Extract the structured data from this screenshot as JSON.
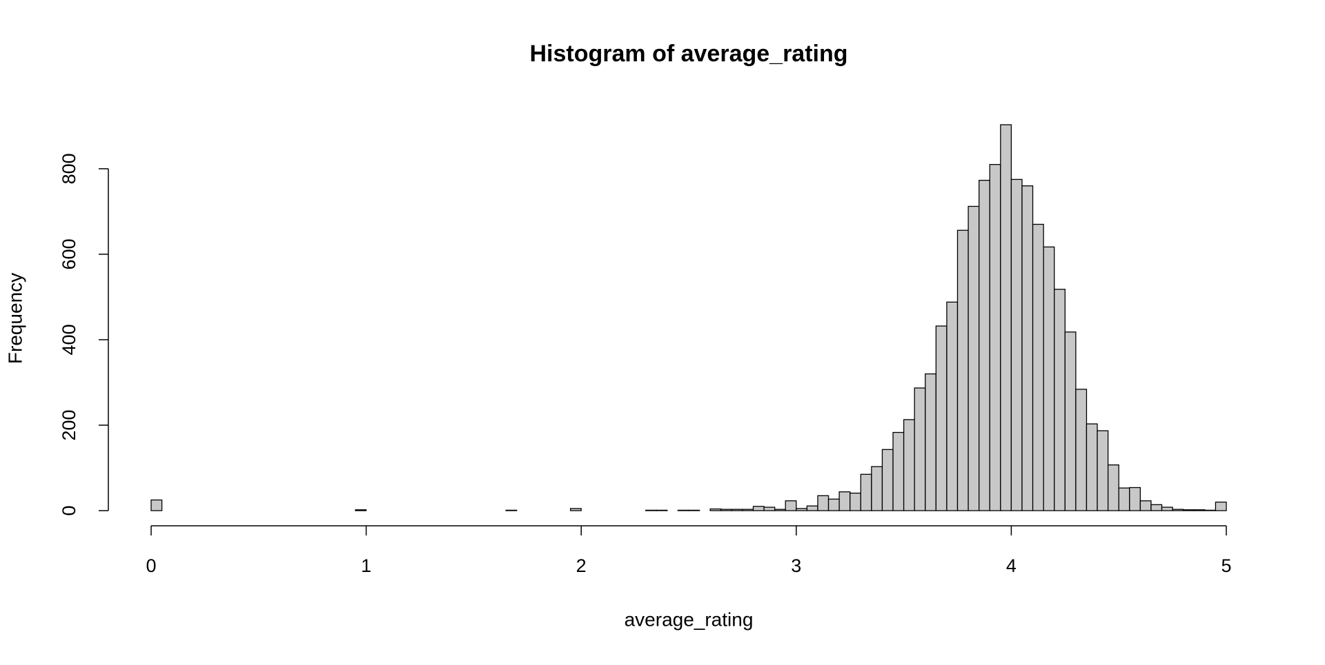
{
  "chart_data": {
    "type": "histogram",
    "title": "Histogram of average_rating",
    "x_label": "average_rating",
    "y_label": "Frequency",
    "bins": [
      0,
      0.05,
      0.1,
      0.15,
      0.2,
      0.25,
      0.3,
      0.35,
      0.4,
      0.45,
      0.5,
      0.55,
      0.6,
      0.65,
      0.7,
      0.75,
      0.8,
      0.85,
      0.9,
      0.95,
      1,
      1.05,
      1.1,
      1.15,
      1.2,
      1.25,
      1.3,
      1.35,
      1.4,
      1.45,
      1.5,
      1.55,
      1.6,
      1.65,
      1.7,
      1.75,
      1.8,
      1.85,
      1.9,
      1.95,
      2,
      2.05,
      2.1,
      2.15,
      2.2,
      2.25,
      2.3,
      2.35,
      2.4,
      2.45,
      2.5,
      2.55,
      2.6,
      2.65,
      2.7,
      2.75,
      2.8,
      2.85,
      2.9,
      2.95,
      3,
      3.05,
      3.1,
      3.15,
      3.2,
      3.25,
      3.3,
      3.35,
      3.4,
      3.45,
      3.5,
      3.55,
      3.6,
      3.65,
      3.7,
      3.75,
      3.8,
      3.85,
      3.9,
      3.95,
      4,
      4.05,
      4.1,
      4.15,
      4.2,
      4.25,
      4.3,
      4.35,
      4.4,
      4.45,
      4.5,
      4.55,
      4.6,
      4.65,
      4.7,
      4.75,
      4.8,
      4.85,
      4.9,
      4.95,
      5
    ],
    "values": [
      25,
      0,
      0,
      0,
      0,
      0,
      0,
      0,
      0,
      0,
      0,
      0,
      0,
      0,
      0,
      0,
      0,
      0,
      0,
      2,
      0,
      0,
      0,
      0,
      0,
      0,
      0,
      0,
      0,
      0,
      0,
      0,
      0,
      1,
      0,
      0,
      0,
      0,
      0,
      5,
      0,
      0,
      0,
      0,
      0,
      0,
      1,
      1,
      0,
      1,
      1,
      0,
      4,
      3,
      3,
      3,
      10,
      8,
      3,
      23,
      5,
      11,
      35,
      27,
      44,
      41,
      85,
      103,
      143,
      183,
      213,
      287,
      320,
      432,
      488,
      656,
      712,
      773,
      810,
      903,
      775,
      760,
      670,
      617,
      518,
      418,
      284,
      203,
      187,
      107,
      53,
      54,
      23,
      14,
      8,
      3,
      2,
      2,
      1,
      20
    ],
    "color": "#c8c8c8",
    "xlim": [
      0,
      5
    ],
    "xticks": [
      0,
      1,
      2,
      3,
      4,
      5
    ],
    "ylim": [
      0,
      903
    ],
    "yticks": [
      0,
      200,
      400,
      600,
      800
    ]
  }
}
